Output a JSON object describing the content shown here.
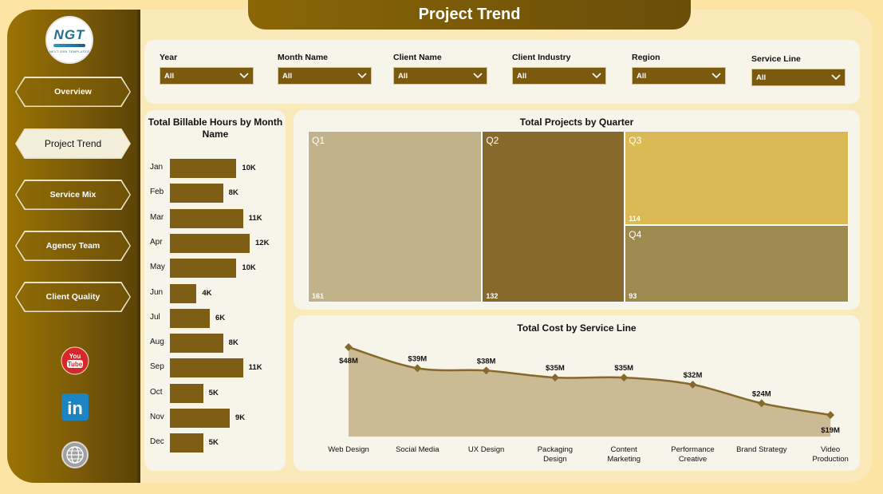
{
  "header": {
    "title": "Project Trend"
  },
  "logo": {
    "text": "NGT",
    "subtext": "NEXT GEN TEMPLATES"
  },
  "nav": [
    {
      "label": "Overview"
    },
    {
      "label": "Project Trend"
    },
    {
      "label": "Service Mix"
    },
    {
      "label": "Agency Team"
    },
    {
      "label": "Client Quality"
    }
  ],
  "social": {
    "youtube": "You Tube",
    "linkedin": "in"
  },
  "filters": [
    {
      "label": "Year",
      "value": "All"
    },
    {
      "label": "Month Name",
      "value": "All"
    },
    {
      "label": "Client Name",
      "value": "All"
    },
    {
      "label": "Client Industry",
      "value": "All"
    },
    {
      "label": "Region",
      "value": "All"
    },
    {
      "label": "Service Line",
      "value": "All"
    }
  ],
  "colors": {
    "bar": "#7d5e14",
    "q1": "#c2b28a",
    "q2": "#86692b",
    "q3": "#dbb954",
    "q4": "#9c8a4f",
    "line": "#86692b",
    "area": "#cbbb94"
  },
  "chart_data": [
    {
      "type": "bar",
      "title": "Total Billable Hours by Month Name",
      "orientation": "horizontal",
      "categories": [
        "Jan",
        "Feb",
        "Mar",
        "Apr",
        "May",
        "Jun",
        "Jul",
        "Aug",
        "Sep",
        "Oct",
        "Nov",
        "Dec"
      ],
      "values": [
        10,
        8,
        11,
        12,
        10,
        4,
        6,
        8,
        11,
        5,
        9,
        5
      ],
      "labels": [
        "10K",
        "8K",
        "11K",
        "12K",
        "10K",
        "4K",
        "6K",
        "8K",
        "11K",
        "5K",
        "9K",
        "5K"
      ]
    },
    {
      "type": "treemap",
      "title": "Total Projects by Quarter",
      "categories": [
        "Q1",
        "Q2",
        "Q3",
        "Q4"
      ],
      "values": [
        161,
        132,
        114,
        93
      ]
    },
    {
      "type": "area",
      "title": "Total Cost by Service Line",
      "categories": [
        [
          "Web Design"
        ],
        [
          "Social Media"
        ],
        [
          "UX Design"
        ],
        [
          "Packaging",
          "Design"
        ],
        [
          "Content",
          "Marketing"
        ],
        [
          "Performance",
          "Creative"
        ],
        [
          "Brand Strategy"
        ],
        [
          "Video",
          "Production"
        ]
      ],
      "values": [
        48,
        39,
        38,
        35,
        35,
        32,
        24,
        19
      ],
      "labels": [
        "$48M",
        "$39M",
        "$38M",
        "$35M",
        "$35M",
        "$32M",
        "$24M",
        "$19M"
      ]
    }
  ]
}
